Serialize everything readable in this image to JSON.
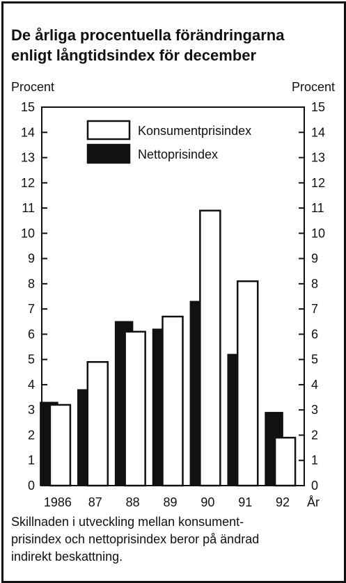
{
  "caption": [
    "Skillnaden i utveckling mellan konsument-",
    "prisindex och nettoprisindex beror på ändrad",
    "indirekt beskattning."
  ],
  "chart_data": {
    "type": "bar",
    "title_lines": [
      "De årliga procentuella förändringarna",
      "enligt långtidsindex för december"
    ],
    "ylabel_left": "Procent",
    "ylabel_right": "Procent",
    "xlabel": "År",
    "ylim": [
      0,
      15
    ],
    "yticks": [
      0,
      1,
      2,
      3,
      4,
      5,
      6,
      7,
      8,
      9,
      10,
      11,
      12,
      13,
      14,
      15
    ],
    "categories": [
      "1986",
      "87",
      "88",
      "89",
      "90",
      "91",
      "92"
    ],
    "series": [
      {
        "name": "Nettoprisindex",
        "color": "#111111",
        "values": [
          3.3,
          3.8,
          6.5,
          6.2,
          7.3,
          5.2,
          2.9
        ]
      },
      {
        "name": "Konsumentprisindex",
        "color": "#ffffff",
        "values": [
          3.2,
          4.9,
          6.1,
          6.7,
          10.9,
          8.1,
          1.9
        ]
      }
    ],
    "legend_position": "top-right",
    "grid": false
  }
}
